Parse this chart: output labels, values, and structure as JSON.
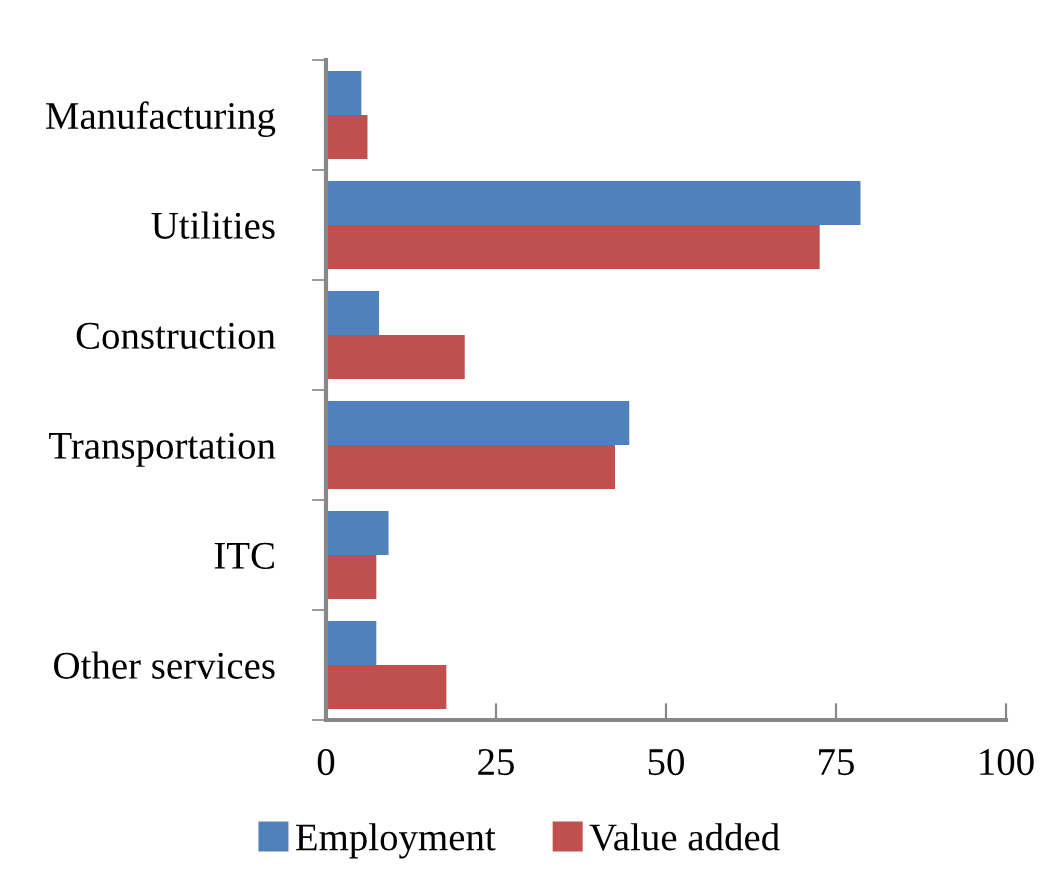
{
  "chart_data": {
    "type": "bar",
    "orientation": "horizontal",
    "categories": [
      "Manufacturing",
      "Utilities",
      "Construction",
      "Transportation",
      "ITC",
      "Other services"
    ],
    "series": [
      {
        "name": "Employment",
        "color": "#4f81bd",
        "values": [
          5.2,
          78.6,
          7.8,
          44.6,
          9.2,
          7.4
        ]
      },
      {
        "name": "Value added",
        "color": "#c0504d",
        "values": [
          6.1,
          72.6,
          20.4,
          42.5,
          7.4,
          17.7
        ]
      }
    ],
    "xlim": [
      0,
      100
    ],
    "xticks": [
      0,
      25,
      50,
      75,
      100
    ],
    "grid": false,
    "legend": "bottom"
  }
}
